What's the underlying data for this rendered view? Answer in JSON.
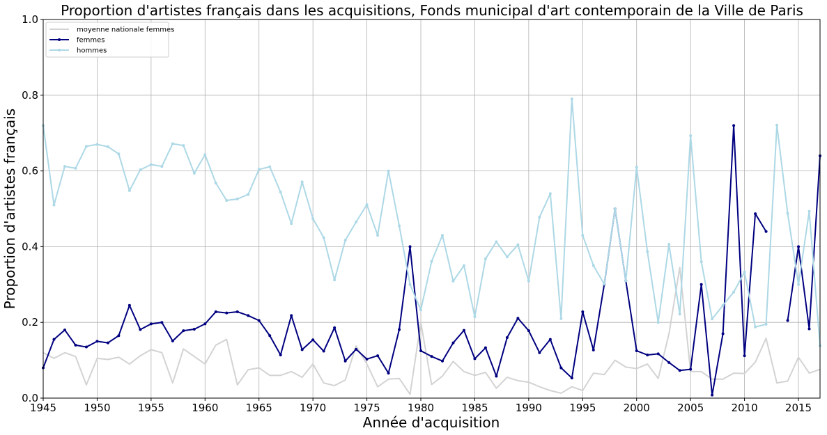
{
  "chart_data": {
    "type": "line",
    "title": "Proportion d'artistes français dans les acquisitions, Fonds municipal d'art contemporain de la Ville de Paris",
    "xlabel": "Année d'acquisition",
    "ylabel": "Proportion d'artistes français",
    "xlim": [
      1945,
      2017
    ],
    "ylim": [
      0,
      1
    ],
    "xticks": [
      1945,
      1950,
      1955,
      1960,
      1965,
      1970,
      1975,
      1980,
      1985,
      1990,
      1995,
      2000,
      2005,
      2010,
      2015
    ],
    "yticks": [
      0.0,
      0.2,
      0.4,
      0.6,
      0.8,
      1.0
    ],
    "grid": true,
    "legend_position": "top-left",
    "series": [
      {
        "name": "moyenne nationale femmes",
        "color": "#d3d3d3",
        "markers": false,
        "points": [
          [
            1945,
            0.12
          ],
          [
            1946,
            0.105
          ],
          [
            1947,
            0.12
          ],
          [
            1948,
            0.11
          ],
          [
            1949,
            0.035
          ],
          [
            1950,
            0.105
          ],
          [
            1951,
            0.102
          ],
          [
            1952,
            0.108
          ],
          [
            1953,
            0.09
          ],
          [
            1954,
            0.112
          ],
          [
            1955,
            0.128
          ],
          [
            1956,
            0.12
          ],
          [
            1957,
            0.04
          ],
          [
            1958,
            0.13
          ],
          [
            1959,
            0.11
          ],
          [
            1960,
            0.09
          ],
          [
            1961,
            0.14
          ],
          [
            1962,
            0.155
          ],
          [
            1963,
            0.035
          ],
          [
            1964,
            0.075
          ],
          [
            1965,
            0.08
          ],
          [
            1966,
            0.06
          ],
          [
            1967,
            0.06
          ],
          [
            1968,
            0.07
          ],
          [
            1969,
            0.055
          ],
          [
            1970,
            0.09
          ],
          [
            1971,
            0.04
          ],
          [
            1972,
            0.033
          ],
          [
            1973,
            0.048
          ],
          [
            1974,
            0.138
          ],
          [
            1975,
            0.09
          ],
          [
            1976,
            0.03
          ],
          [
            1977,
            0.05
          ],
          [
            1978,
            0.052
          ],
          [
            1979,
            0.01
          ],
          [
            1980,
            0.2
          ],
          [
            1981,
            0.036
          ],
          [
            1982,
            0.058
          ],
          [
            1983,
            0.097
          ],
          [
            1984,
            0.07
          ],
          [
            1985,
            0.06
          ],
          [
            1986,
            0.068
          ],
          [
            1987,
            0.026
          ],
          [
            1988,
            0.055
          ],
          [
            1989,
            0.046
          ],
          [
            1990,
            0.042
          ],
          [
            1991,
            0.03
          ],
          [
            1992,
            0.02
          ],
          [
            1993,
            0.013
          ],
          [
            1994,
            0.03
          ],
          [
            1995,
            0.02
          ],
          [
            1996,
            0.066
          ],
          [
            1997,
            0.062
          ],
          [
            1998,
            0.1
          ],
          [
            1999,
            0.082
          ],
          [
            2000,
            0.078
          ],
          [
            2001,
            0.09
          ],
          [
            2002,
            0.052
          ],
          [
            2003,
            0.17
          ],
          [
            2004,
            0.345
          ],
          [
            2005,
            0.07
          ],
          [
            2006,
            0.07
          ],
          [
            2007,
            0.05
          ],
          [
            2008,
            0.05
          ],
          [
            2009,
            0.066
          ],
          [
            2010,
            0.065
          ],
          [
            2011,
            0.095
          ],
          [
            2012,
            0.158
          ],
          [
            2013,
            0.04
          ],
          [
            2014,
            0.045
          ],
          [
            2015,
            0.108
          ],
          [
            2016,
            0.066
          ],
          [
            2017,
            0.076
          ]
        ]
      },
      {
        "name": "femmes",
        "color": "#000080",
        "markers": true,
        "points": [
          [
            1945,
            0.08
          ],
          [
            1946,
            0.155
          ],
          [
            1947,
            0.18
          ],
          [
            1948,
            0.14
          ],
          [
            1949,
            0.135
          ],
          [
            1950,
            0.15
          ],
          [
            1951,
            0.146
          ],
          [
            1952,
            0.165
          ],
          [
            1953,
            0.245
          ],
          [
            1954,
            0.181
          ],
          [
            1955,
            0.196
          ],
          [
            1956,
            0.2
          ],
          [
            1957,
            0.151
          ],
          [
            1958,
            0.178
          ],
          [
            1959,
            0.182
          ],
          [
            1960,
            0.196
          ],
          [
            1961,
            0.228
          ],
          [
            1962,
            0.225
          ],
          [
            1963,
            0.228
          ],
          [
            1964,
            0.218
          ],
          [
            1965,
            0.205
          ],
          [
            1966,
            0.165
          ],
          [
            1967,
            0.114
          ],
          [
            1968,
            0.218
          ],
          [
            1969,
            0.128
          ],
          [
            1970,
            0.154
          ],
          [
            1971,
            0.124
          ],
          [
            1972,
            0.186
          ],
          [
            1973,
            0.098
          ],
          [
            1974,
            0.129
          ],
          [
            1975,
            0.103
          ],
          [
            1976,
            0.112
          ],
          [
            1977,
            0.066
          ],
          [
            1978,
            0.181
          ],
          [
            1979,
            0.4
          ],
          [
            1980,
            0.125
          ],
          [
            1981,
            0.11
          ],
          [
            1982,
            0.098
          ],
          [
            1983,
            0.146
          ],
          [
            1984,
            0.179
          ],
          [
            1985,
            0.104
          ],
          [
            1986,
            0.133
          ],
          [
            1987,
            0.058
          ],
          [
            1988,
            0.16
          ],
          [
            1989,
            0.211
          ],
          [
            1990,
            0.178
          ],
          [
            1991,
            0.12
          ],
          [
            1992,
            0.155
          ],
          [
            1993,
            0.08
          ],
          [
            1994,
            0.053
          ],
          [
            1995,
            0.228
          ],
          [
            1996,
            0.127
          ],
          [
            1997,
            0.3
          ],
          [
            1998,
            0.5
          ],
          [
            1999,
            0.31
          ],
          [
            2000,
            0.125
          ],
          [
            2001,
            0.114
          ],
          [
            2002,
            0.117
          ],
          [
            2003,
            0.094
          ],
          [
            2004,
            0.073
          ],
          [
            2005,
            0.076
          ],
          [
            2006,
            0.3
          ],
          [
            2007,
            0.008
          ],
          [
            2008,
            0.17
          ],
          [
            2009,
            0.72
          ],
          [
            2010,
            0.112
          ],
          [
            2011,
            0.487
          ],
          [
            2012,
            0.44
          ],
          [
            2013,
            null
          ],
          [
            2014,
            0.205
          ],
          [
            2015,
            0.4
          ],
          [
            2016,
            0.183
          ],
          [
            2017,
            0.64
          ]
        ]
      },
      {
        "name": "hommes",
        "color": "#add8e6",
        "markers": true,
        "points": [
          [
            1945,
            0.72
          ],
          [
            1946,
            0.51
          ],
          [
            1947,
            0.612
          ],
          [
            1948,
            0.607
          ],
          [
            1949,
            0.665
          ],
          [
            1950,
            0.67
          ],
          [
            1951,
            0.664
          ],
          [
            1952,
            0.645
          ],
          [
            1953,
            0.548
          ],
          [
            1954,
            0.603
          ],
          [
            1955,
            0.617
          ],
          [
            1956,
            0.612
          ],
          [
            1957,
            0.672
          ],
          [
            1958,
            0.667
          ],
          [
            1959,
            0.594
          ],
          [
            1960,
            0.643
          ],
          [
            1961,
            0.568
          ],
          [
            1962,
            0.522
          ],
          [
            1963,
            0.526
          ],
          [
            1964,
            0.538
          ],
          [
            1965,
            0.604
          ],
          [
            1966,
            0.611
          ],
          [
            1967,
            0.544
          ],
          [
            1968,
            0.461
          ],
          [
            1969,
            0.571
          ],
          [
            1970,
            0.474
          ],
          [
            1971,
            0.424
          ],
          [
            1972,
            0.312
          ],
          [
            1973,
            0.417
          ],
          [
            1974,
            0.465
          ],
          [
            1975,
            0.511
          ],
          [
            1976,
            0.43
          ],
          [
            1977,
            0.6
          ],
          [
            1978,
            0.455
          ],
          [
            1979,
            0.3
          ],
          [
            1980,
            0.233
          ],
          [
            1981,
            0.361
          ],
          [
            1982,
            0.43
          ],
          [
            1983,
            0.309
          ],
          [
            1984,
            0.35
          ],
          [
            1985,
            0.215
          ],
          [
            1986,
            0.368
          ],
          [
            1987,
            0.413
          ],
          [
            1988,
            0.373
          ],
          [
            1989,
            0.405
          ],
          [
            1990,
            0.309
          ],
          [
            1991,
            0.478
          ],
          [
            1992,
            0.54
          ],
          [
            1993,
            0.21
          ],
          [
            1994,
            0.79
          ],
          [
            1995,
            0.43
          ],
          [
            1996,
            0.35
          ],
          [
            1997,
            0.301
          ],
          [
            1998,
            0.5
          ],
          [
            1999,
            0.31
          ],
          [
            2000,
            0.61
          ],
          [
            2001,
            0.387
          ],
          [
            2002,
            0.2
          ],
          [
            2003,
            0.406
          ],
          [
            2004,
            0.222
          ],
          [
            2005,
            0.693
          ],
          [
            2006,
            0.36
          ],
          [
            2007,
            0.209
          ],
          [
            2008,
            0.245
          ],
          [
            2009,
            0.28
          ],
          [
            2010,
            0.333
          ],
          [
            2011,
            0.188
          ],
          [
            2012,
            0.195
          ],
          [
            2013,
            0.721
          ],
          [
            2014,
            0.488
          ],
          [
            2015,
            0.3
          ],
          [
            2016,
            0.493
          ],
          [
            2017,
            0.138
          ]
        ]
      }
    ]
  }
}
